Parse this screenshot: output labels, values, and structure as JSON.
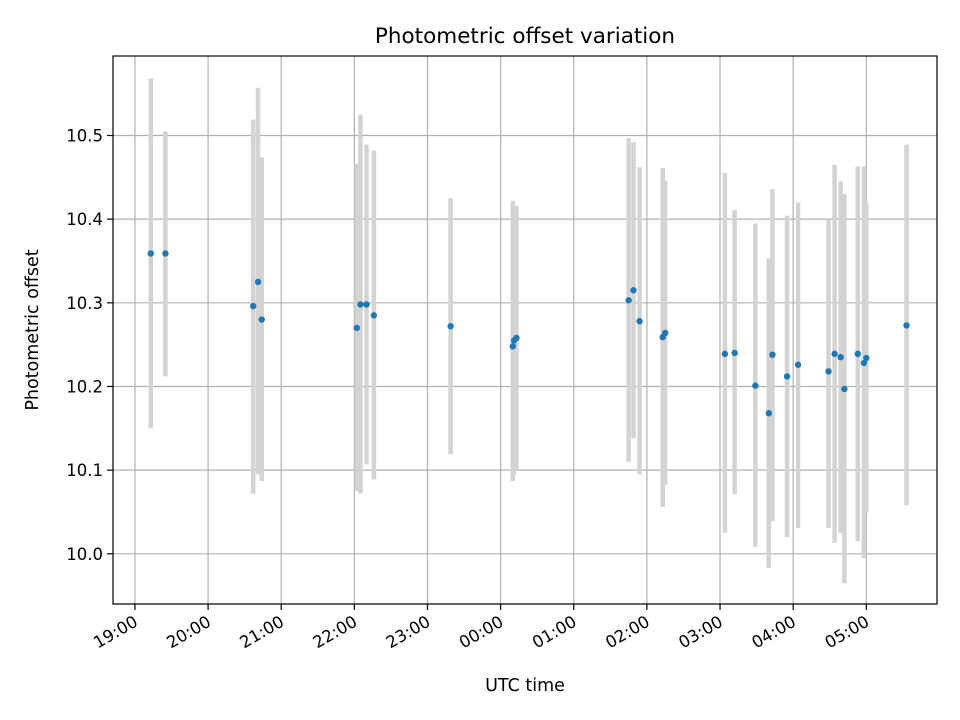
{
  "chart_data": {
    "type": "scatter",
    "title": "Photometric offset variation",
    "xlabel": "UTC time",
    "ylabel": "Photometric offset",
    "x_ticks": [
      "19:00",
      "20:00",
      "21:00",
      "22:00",
      "23:00",
      "00:00",
      "01:00",
      "02:00",
      "03:00",
      "04:00",
      "05:00"
    ],
    "x_tick_values": [
      0,
      60,
      120,
      180,
      240,
      300,
      360,
      420,
      480,
      540,
      600
    ],
    "y_ticks": [
      "10.0",
      "10.1",
      "10.2",
      "10.3",
      "10.4",
      "10.5"
    ],
    "y_tick_values": [
      10.0,
      10.1,
      10.2,
      10.3,
      10.4,
      10.5
    ],
    "xlim": [
      -18,
      658
    ],
    "ylim": [
      9.94,
      10.595
    ],
    "grid": true,
    "marker_color": "#1f77b4",
    "errorbar_color": "#d3d3d3",
    "points": [
      {
        "x": 13,
        "y": 10.359,
        "lo": 10.15,
        "hi": 10.568
      },
      {
        "x": 25,
        "y": 10.359,
        "lo": 10.212,
        "hi": 10.505
      },
      {
        "x": 97,
        "y": 10.296,
        "lo": 10.072,
        "hi": 10.519
      },
      {
        "x": 101,
        "y": 10.325,
        "lo": 10.095,
        "hi": 10.557
      },
      {
        "x": 104,
        "y": 10.28,
        "lo": 10.087,
        "hi": 10.474
      },
      {
        "x": 182,
        "y": 10.27,
        "lo": 10.075,
        "hi": 10.466
      },
      {
        "x": 185,
        "y": 10.298,
        "lo": 10.072,
        "hi": 10.525
      },
      {
        "x": 190,
        "y": 10.298,
        "lo": 10.107,
        "hi": 10.489
      },
      {
        "x": 196,
        "y": 10.285,
        "lo": 10.089,
        "hi": 10.482
      },
      {
        "x": 259,
        "y": 10.272,
        "lo": 10.119,
        "hi": 10.425
      },
      {
        "x": 310,
        "y": 10.248,
        "lo": 10.087,
        "hi": 10.422
      },
      {
        "x": 311,
        "y": 10.255,
        "lo": 10.095,
        "hi": 10.414
      },
      {
        "x": 313,
        "y": 10.258,
        "lo": 10.1,
        "hi": 10.416
      },
      {
        "x": 405,
        "y": 10.303,
        "lo": 10.11,
        "hi": 10.497
      },
      {
        "x": 409,
        "y": 10.315,
        "lo": 10.138,
        "hi": 10.492
      },
      {
        "x": 414,
        "y": 10.278,
        "lo": 10.095,
        "hi": 10.462
      },
      {
        "x": 433,
        "y": 10.259,
        "lo": 10.056,
        "hi": 10.461
      },
      {
        "x": 435,
        "y": 10.264,
        "lo": 10.082,
        "hi": 10.446
      },
      {
        "x": 484,
        "y": 10.239,
        "lo": 10.025,
        "hi": 10.455
      },
      {
        "x": 492,
        "y": 10.24,
        "lo": 10.071,
        "hi": 10.411
      },
      {
        "x": 509,
        "y": 10.201,
        "lo": 10.008,
        "hi": 10.395
      },
      {
        "x": 520,
        "y": 10.168,
        "lo": 9.983,
        "hi": 10.353
      },
      {
        "x": 523,
        "y": 10.238,
        "lo": 10.039,
        "hi": 10.436
      },
      {
        "x": 535,
        "y": 10.212,
        "lo": 10.02,
        "hi": 10.404
      },
      {
        "x": 544,
        "y": 10.226,
        "lo": 10.031,
        "hi": 10.42
      },
      {
        "x": 569,
        "y": 10.218,
        "lo": 10.031,
        "hi": 10.4
      },
      {
        "x": 574,
        "y": 10.239,
        "lo": 10.013,
        "hi": 10.465
      },
      {
        "x": 579,
        "y": 10.235,
        "lo": 10.025,
        "hi": 10.445
      },
      {
        "x": 582,
        "y": 10.197,
        "lo": 9.965,
        "hi": 10.43
      },
      {
        "x": 593,
        "y": 10.239,
        "lo": 10.015,
        "hi": 10.463
      },
      {
        "x": 598,
        "y": 10.228,
        "lo": 9.995,
        "hi": 10.463
      },
      {
        "x": 600,
        "y": 10.234,
        "lo": 10.049,
        "hi": 10.419
      },
      {
        "x": 633,
        "y": 10.273,
        "lo": 10.058,
        "hi": 10.489
      }
    ]
  }
}
